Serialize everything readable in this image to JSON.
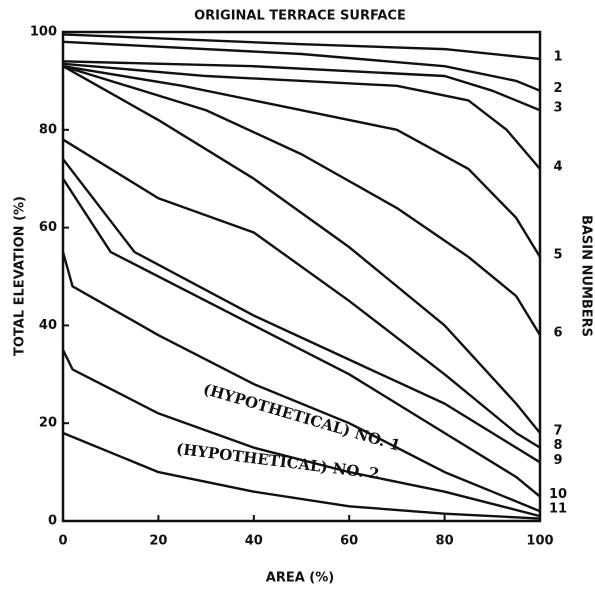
{
  "chart_data": {
    "type": "line",
    "title": "ORIGINAL TERRACE SURFACE",
    "x_label": "AREA (%)",
    "y_label": "TOTAL ELEVATION (%)",
    "y2_label": "BASIN NUMBERS",
    "xlim": [
      0,
      100
    ],
    "ylim": [
      0,
      100
    ],
    "xticks": [
      0,
      20,
      40,
      60,
      80,
      100
    ],
    "yticks": [
      0,
      20,
      40,
      60,
      80,
      100
    ],
    "color": "#111111",
    "series": [
      {
        "name": "1",
        "x": [
          0,
          50,
          80,
          100
        ],
        "values": [
          99.5,
          97.5,
          96.5,
          94.5
        ]
      },
      {
        "name": "2",
        "x": [
          0,
          50,
          80,
          95,
          100
        ],
        "values": [
          98,
          95.5,
          93,
          90,
          88
        ]
      },
      {
        "name": "3",
        "x": [
          0,
          40,
          80,
          90,
          100
        ],
        "values": [
          94,
          93,
          91,
          88,
          84
        ]
      },
      {
        "name": "4",
        "x": [
          0,
          30,
          70,
          85,
          93,
          100
        ],
        "values": [
          93.5,
          91,
          89,
          86,
          80,
          72
        ]
      },
      {
        "name": "5",
        "x": [
          0,
          25,
          45,
          70,
          85,
          95,
          100
        ],
        "values": [
          93,
          89,
          85,
          80,
          72,
          62,
          54
        ]
      },
      {
        "name": "6",
        "x": [
          0,
          30,
          50,
          70,
          85,
          95,
          100
        ],
        "values": [
          93,
          84,
          75,
          64,
          54,
          46,
          38
        ]
      },
      {
        "name": "7",
        "x": [
          0,
          20,
          40,
          60,
          80,
          95,
          100
        ],
        "values": [
          93,
          82,
          70,
          56,
          40,
          24,
          18
        ]
      },
      {
        "name": "8",
        "x": [
          0,
          20,
          40,
          60,
          80,
          95,
          100
        ],
        "values": [
          78,
          66,
          59,
          45,
          30,
          18,
          15
        ]
      },
      {
        "name": "9",
        "x": [
          0,
          15,
          40,
          60,
          80,
          95,
          100
        ],
        "values": [
          74,
          55,
          42,
          33,
          24,
          15,
          12
        ]
      },
      {
        "name": "10",
        "x": [
          0,
          10,
          40,
          60,
          80,
          95,
          100
        ],
        "values": [
          70,
          55,
          40,
          30,
          18,
          9,
          5
        ]
      },
      {
        "name": "11",
        "x": [
          0,
          2,
          20,
          40,
          60,
          80,
          100
        ],
        "values": [
          55,
          48,
          38,
          28,
          20,
          10,
          2
        ]
      },
      {
        "name": "(HYPOTHETICAL) NO. 1",
        "x": [
          0,
          2,
          20,
          40,
          60,
          80,
          100
        ],
        "values": [
          35,
          31,
          22,
          15,
          10,
          6,
          1
        ]
      },
      {
        "name": "(HYPOTHETICAL) NO. 2",
        "x": [
          0,
          20,
          40,
          60,
          80,
          100
        ],
        "values": [
          18,
          10,
          6,
          3,
          1.5,
          0.5
        ]
      }
    ]
  }
}
